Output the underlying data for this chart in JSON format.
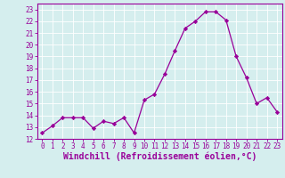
{
  "x": [
    0,
    1,
    2,
    3,
    4,
    5,
    6,
    7,
    8,
    9,
    10,
    11,
    12,
    13,
    14,
    15,
    16,
    17,
    18,
    19,
    20,
    21,
    22,
    23
  ],
  "y": [
    12.5,
    13.1,
    13.8,
    13.8,
    13.8,
    12.9,
    13.5,
    13.3,
    13.8,
    12.5,
    15.3,
    15.8,
    17.5,
    19.5,
    21.4,
    22.0,
    22.8,
    22.8,
    22.1,
    19.0,
    17.2,
    15.0,
    15.5,
    14.3
  ],
  "line_color": "#990099",
  "marker": "D",
  "marker_size": 2.2,
  "bg_color": "#d5eeee",
  "grid_color": "#ffffff",
  "xlabel": "Windchill (Refroidissement éolien,°C)",
  "xlabel_color": "#990099",
  "xlabel_fontsize": 7,
  "xtick_fontsize": 5.5,
  "ytick_fontsize": 5.5,
  "ylim": [
    12,
    23.5
  ],
  "xlim": [
    -0.5,
    23.5
  ],
  "yticks": [
    12,
    13,
    14,
    15,
    16,
    17,
    18,
    19,
    20,
    21,
    22,
    23
  ],
  "xticks": [
    0,
    1,
    2,
    3,
    4,
    5,
    6,
    7,
    8,
    9,
    10,
    11,
    12,
    13,
    14,
    15,
    16,
    17,
    18,
    19,
    20,
    21,
    22,
    23
  ],
  "tick_color": "#990099",
  "spine_color": "#990099",
  "linewidth": 0.9
}
